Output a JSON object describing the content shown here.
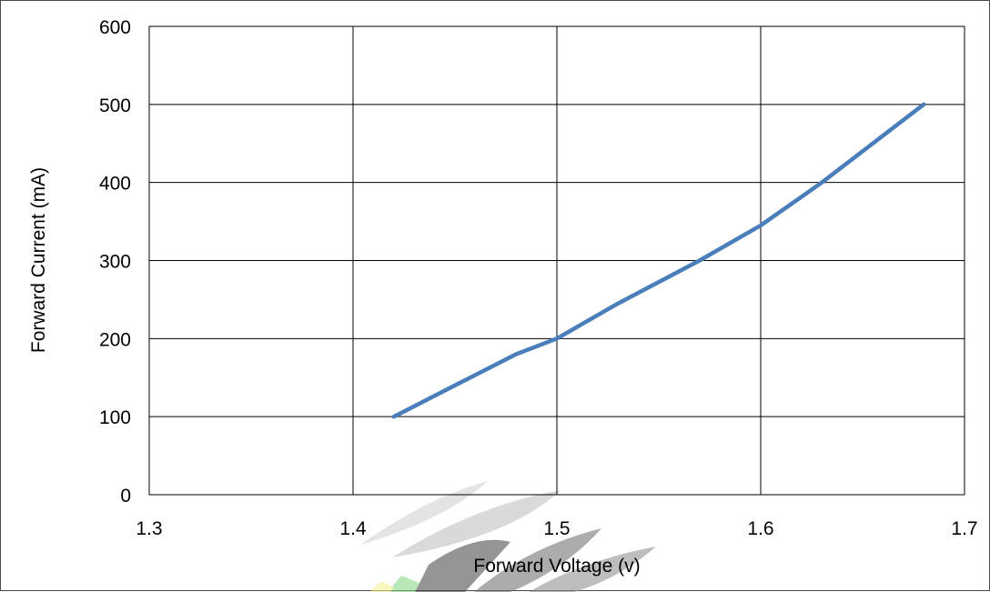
{
  "chart_data": {
    "type": "line",
    "title": "",
    "xlabel": "Forward Voltage (v)",
    "ylabel": "Forward Current (mA)",
    "xlim": [
      1.3,
      1.7
    ],
    "ylim": [
      0,
      600
    ],
    "x_ticks": [
      "1.3",
      "1.4",
      "1.5",
      "1.6",
      "1.7"
    ],
    "y_ticks": [
      "0",
      "100",
      "200",
      "300",
      "400",
      "500",
      "600"
    ],
    "grid": true,
    "series": [
      {
        "color": "#4a7ebb",
        "x": [
          1.42,
          1.45,
          1.48,
          1.5,
          1.53,
          1.57,
          1.6,
          1.63,
          1.65,
          1.68
        ],
        "y": [
          100,
          140,
          180,
          200,
          245,
          300,
          345,
          400,
          440,
          500
        ]
      }
    ]
  },
  "watermark": {
    "colors": [
      "#9a9a9a",
      "#404040",
      "#7fd67f",
      "#f2f28a"
    ]
  }
}
